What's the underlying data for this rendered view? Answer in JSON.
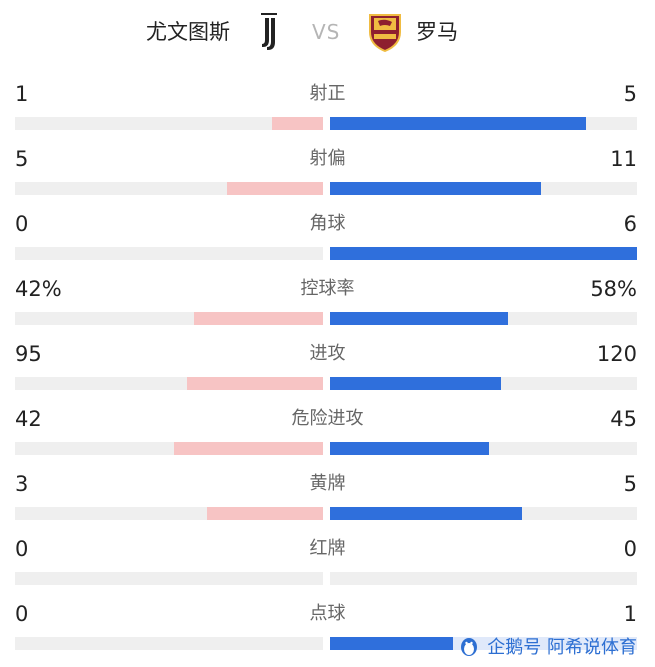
{
  "header": {
    "home_team": "尤文图斯",
    "away_team": "罗马",
    "vs": "VS",
    "home_logo_icon": "juventus-logo-icon",
    "away_logo_icon": "roma-logo-icon"
  },
  "colors": {
    "home_bar": "#f7c4c4",
    "away_bar": "#2f6fdc",
    "track": "#efefef"
  },
  "stats": [
    {
      "label": "射正",
      "home": "1",
      "away": "5",
      "home_fraction": 0.167,
      "away_fraction": 0.833
    },
    {
      "label": "射偏",
      "home": "5",
      "away": "11",
      "home_fraction": 0.313,
      "away_fraction": 0.688
    },
    {
      "label": "角球",
      "home": "0",
      "away": "6",
      "home_fraction": 0.0,
      "away_fraction": 1.0
    },
    {
      "label": "控球率",
      "home": "42%",
      "away": "58%",
      "home_fraction": 0.42,
      "away_fraction": 0.58
    },
    {
      "label": "进攻",
      "home": "95",
      "away": "120",
      "home_fraction": 0.442,
      "away_fraction": 0.558
    },
    {
      "label": "危险进攻",
      "home": "42",
      "away": "45",
      "home_fraction": 0.483,
      "away_fraction": 0.517
    },
    {
      "label": "黄牌",
      "home": "3",
      "away": "5",
      "home_fraction": 0.375,
      "away_fraction": 0.625
    },
    {
      "label": "红牌",
      "home": "0",
      "away": "0",
      "home_fraction": 0.0,
      "away_fraction": 0.0
    },
    {
      "label": "点球",
      "home": "0",
      "away": "1",
      "home_fraction": 0.0,
      "away_fraction": 1.0
    }
  ],
  "watermark": {
    "text": "企鹅号 阿希说体育",
    "icon": "penguin-logo-icon"
  }
}
